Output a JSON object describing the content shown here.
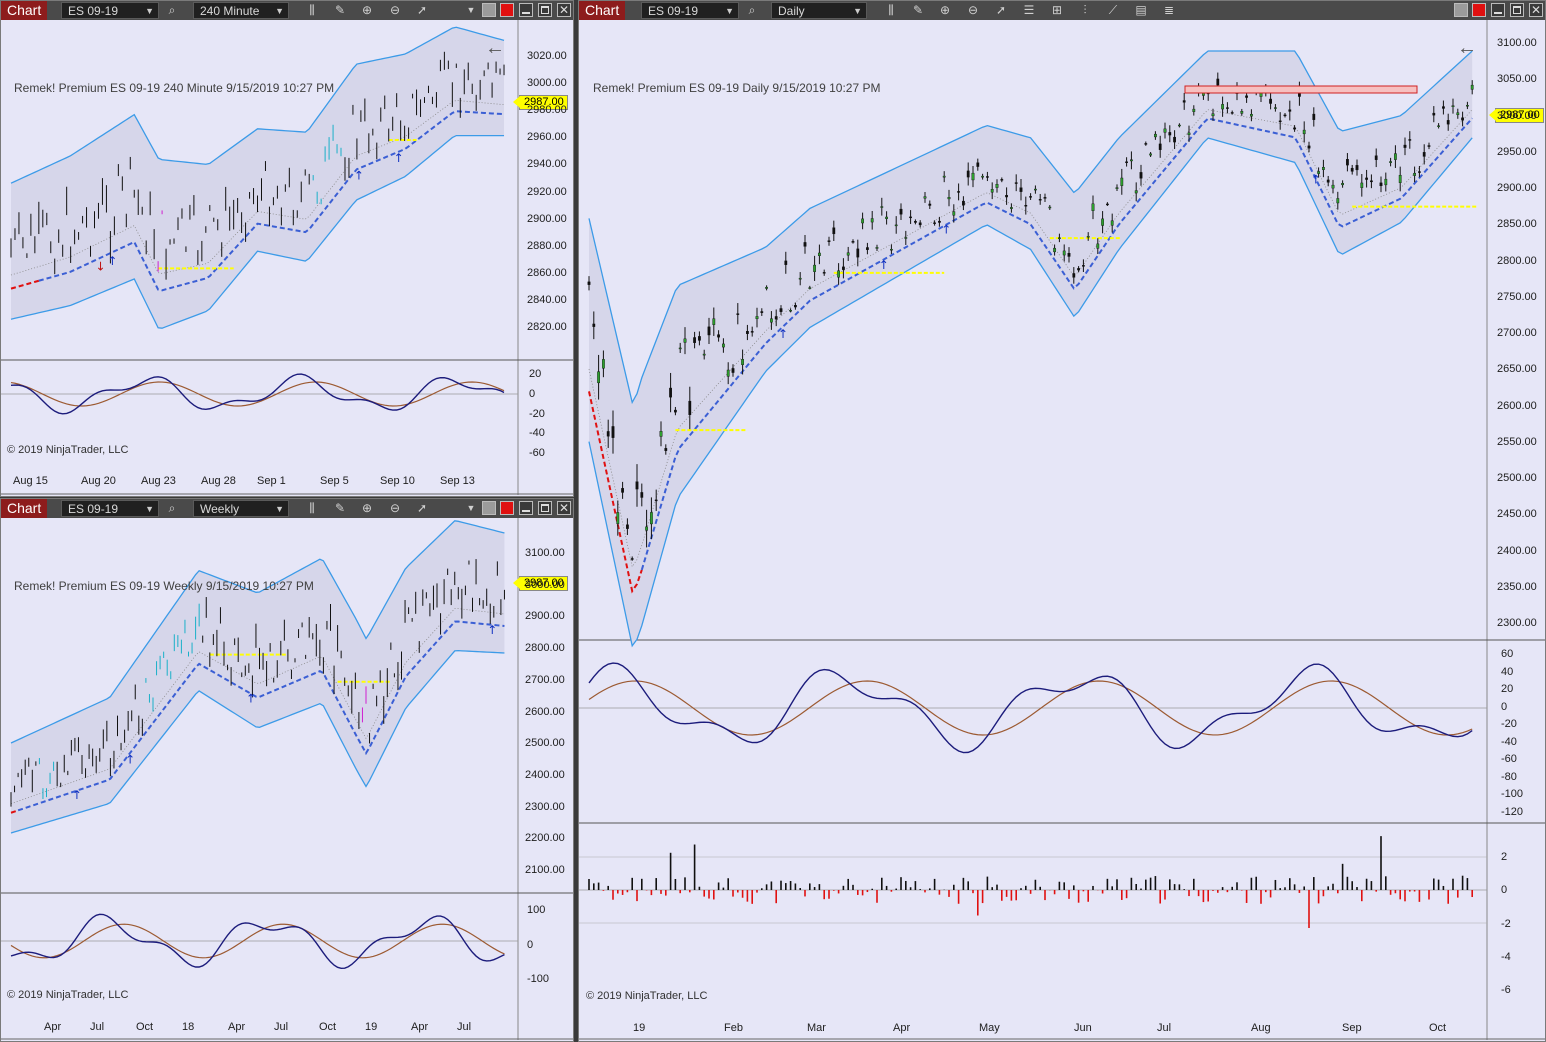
{
  "windows": {
    "w240": {
      "title": "Chart",
      "instrument": "ES 09-19",
      "interval": "240 Minute",
      "label": "Remek!  Premium  ES 09-19  240 Minute  9/15/2019 10:27 PM",
      "price": "2987.00",
      "copyright": "© 2019 NinjaTrader, LLC",
      "y_ticks": [
        "3020.00",
        "3000.00",
        "2980.00",
        "2960.00",
        "2940.00",
        "2920.00",
        "2900.00",
        "2880.00",
        "2860.00",
        "2840.00",
        "2820.00"
      ],
      "osc_ticks": [
        "20",
        "0",
        "-20",
        "-40",
        "-60"
      ],
      "x_ticks": [
        "Aug 15",
        "Aug 20",
        "Aug 23",
        "Aug 28",
        "Sep 1",
        "Sep 5",
        "Sep 10",
        "Sep 13"
      ]
    },
    "weekly": {
      "title": "Chart",
      "instrument": "ES 09-19",
      "interval": "Weekly",
      "label": "Remek!  Premium  ES 09-19  Weekly  9/15/2019 10:27 PM",
      "price": "2987.00",
      "copyright": "© 2019 NinjaTrader, LLC",
      "y_ticks": [
        "3100.00",
        "3000.00",
        "2900.00",
        "2800.00",
        "2700.00",
        "2600.00",
        "2500.00",
        "2400.00",
        "2300.00",
        "2200.00",
        "2100.00"
      ],
      "osc_ticks": [
        "100",
        "0",
        "-100"
      ],
      "x_ticks": [
        "Apr",
        "Jul",
        "Oct",
        "18",
        "Apr",
        "Jul",
        "Oct",
        "19",
        "Apr",
        "Jul"
      ]
    },
    "daily": {
      "title": "Chart",
      "instrument": "ES 09-19",
      "interval": "Daily",
      "label": "Remek!  Premium  ES 09-19  Daily  9/15/2019 10:27 PM",
      "price": "2987.00",
      "copyright": "© 2019 NinjaTrader, LLC",
      "y_ticks": [
        "3100.00",
        "3050.00",
        "3000.00",
        "2950.00",
        "2900.00",
        "2850.00",
        "2800.00",
        "2750.00",
        "2700.00",
        "2650.00",
        "2600.00",
        "2550.00",
        "2500.00",
        "2450.00",
        "2400.00",
        "2350.00",
        "2300.00"
      ],
      "osc_ticks": [
        "60",
        "40",
        "20",
        "0",
        "-20",
        "-40",
        "-60",
        "-80",
        "-100",
        "-120"
      ],
      "hist_ticks": [
        "2",
        "0",
        "-2",
        "-4",
        "-6"
      ],
      "x_ticks": [
        "19",
        "Feb",
        "Mar",
        "Apr",
        "May",
        "Jun",
        "Jul",
        "Aug",
        "Sep",
        "Oct"
      ]
    }
  },
  "colors": {
    "band": "#3c9be8",
    "bull_candle": "#2aa52a",
    "bear_candle": "#101010",
    "trend_up": "#3b5fd4",
    "trend_down": "#e01010",
    "signal_yellow": "#ffff00",
    "osc_fast": "#1c1c7c",
    "osc_slow": "#9c5a32",
    "hist_pos": "#101010",
    "hist_neg": "#e01010"
  },
  "icons": [
    "search-icon",
    "bars-icon",
    "pencil-icon",
    "zoom-in-icon",
    "zoom-out-icon",
    "cursor-icon",
    "dropdown-arrow-icon",
    "properties-icon",
    "back-arrow-icon"
  ]
}
